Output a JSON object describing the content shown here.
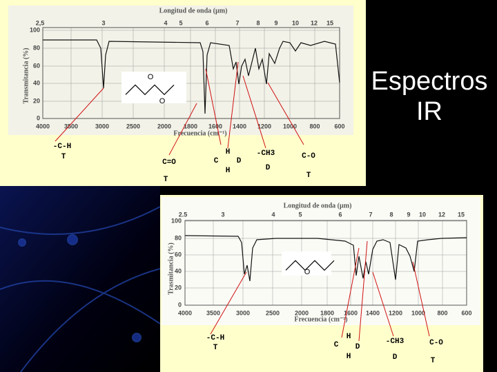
{
  "slide": {
    "title": "Espectros IR",
    "spectra": [
      {
        "wavelength_label": "Longitud de onda (µm)",
        "wavelength_ticks": [
          "2,5",
          "3",
          "4",
          "5",
          "6",
          "7",
          "8",
          "9",
          "10",
          "12",
          "15"
        ],
        "y_label": "Transmitancia (%)",
        "y_ticks": [
          "100",
          "80",
          "60",
          "40",
          "20",
          "0"
        ],
        "frequency_label": "Frecuencia (cm⁻¹)",
        "frequency_ticks": [
          "4000",
          "3500",
          "3000",
          "2500",
          "2000",
          "1800",
          "1600",
          "1400",
          "1200",
          "1000",
          "800",
          "600"
        ],
        "molecule_atom": "O",
        "carbonyl_atom": "O",
        "annotations": [
          "-C-H",
          "T",
          "C=O",
          "T",
          "C",
          "H",
          "H",
          "D",
          "-CH3",
          "D",
          "C-O",
          "T"
        ]
      },
      {
        "wavelength_label": "Longitud de onda (µm)",
        "wavelength_ticks": [
          "2.5",
          "3",
          "4",
          "5",
          "6",
          "7",
          "8",
          "9",
          "10",
          "12",
          "15"
        ],
        "y_label": "Trasmitancia (%)",
        "y_ticks": [
          "100",
          "80",
          "60",
          "40",
          "20",
          "0"
        ],
        "frequency_label": "Frecuencia (cm⁻¹)",
        "frequency_ticks": [
          "4000",
          "3500",
          "3000",
          "2500",
          "2000",
          "1800",
          "1600",
          "1400",
          "1200",
          "1000",
          "800",
          "600"
        ],
        "molecule_atom": "O",
        "annotations": [
          "-C-H",
          "T",
          "C",
          "H",
          "H",
          "D",
          "-CH3",
          "D",
          "C-O",
          "T"
        ]
      }
    ]
  }
}
